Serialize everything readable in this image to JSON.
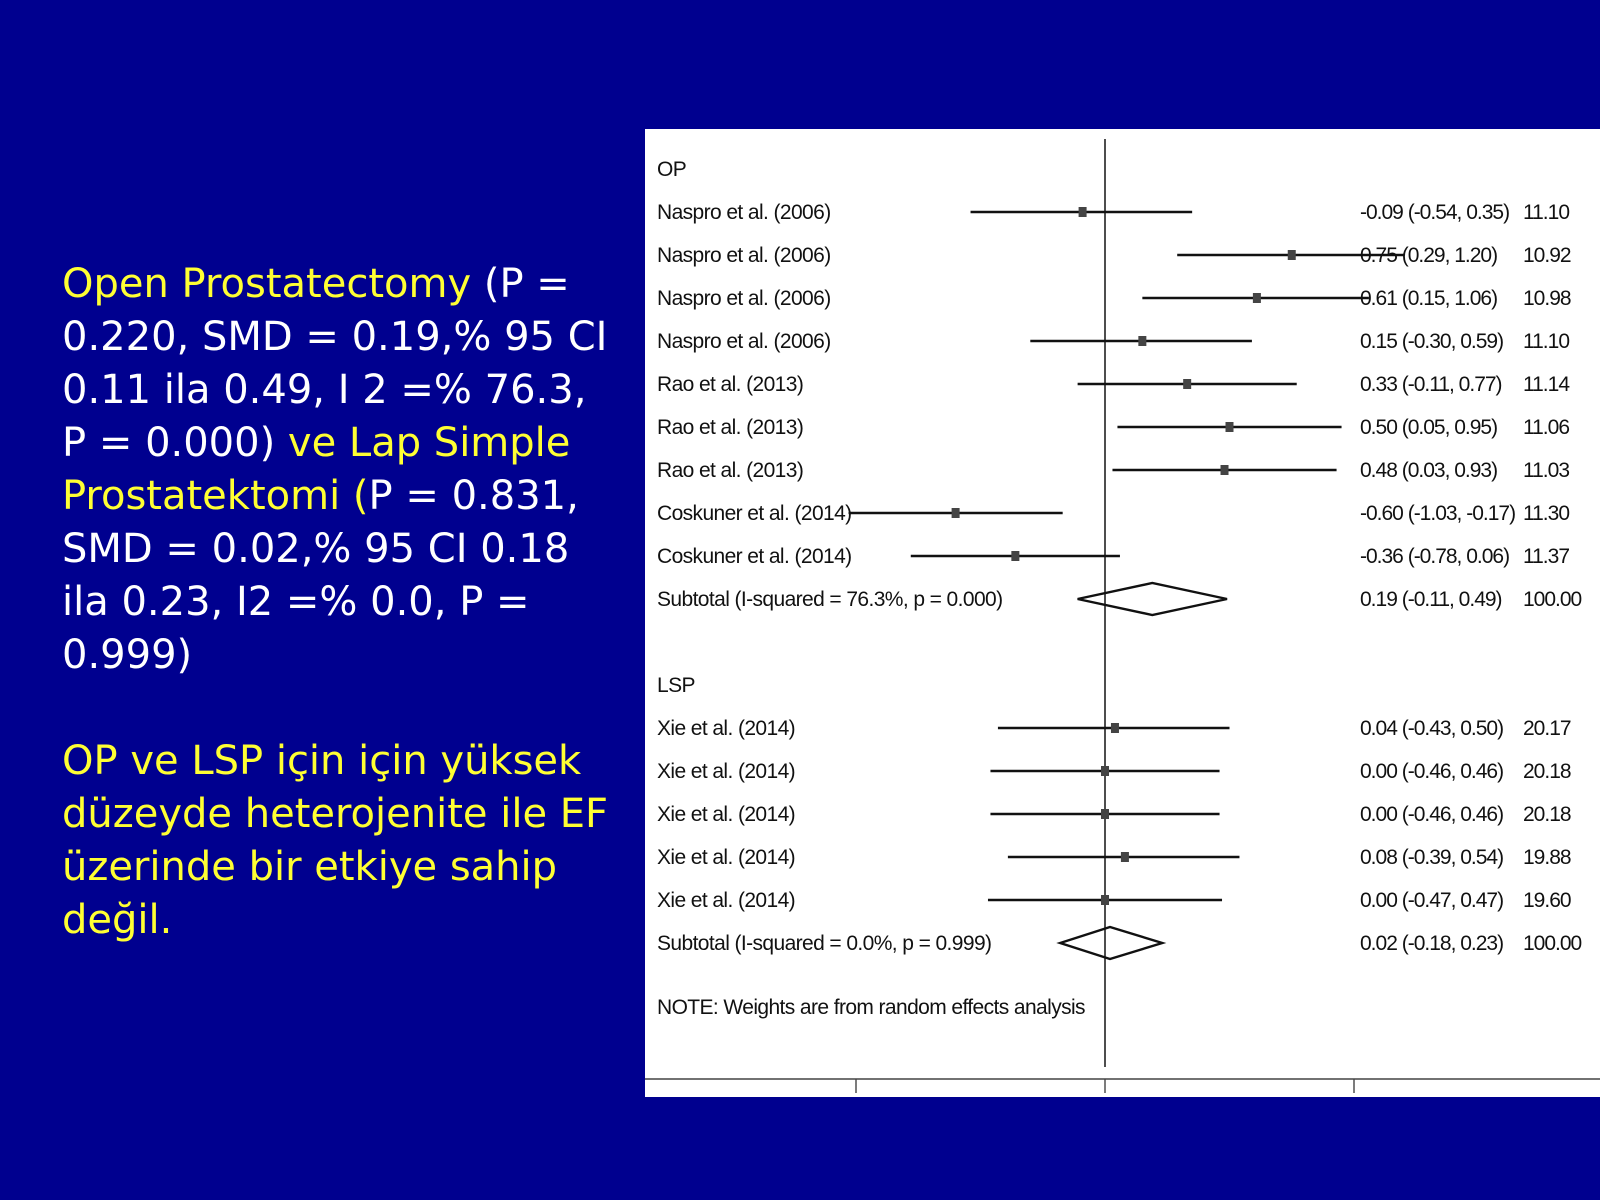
{
  "slide": {
    "paragraph1": [
      {
        "text": "Open Prostatectomy ",
        "color": "yellow"
      },
      {
        "text": "(P = 0.220, SMD = 0.19,% 95 CI 0.11 ila 0.49, I 2 =% 76.3, P = 0.000) ",
        "color": "white"
      },
      {
        "text": "ve Lap Simple Prostatektomi (",
        "color": "yellow"
      },
      {
        "text": "P = 0.831, SMD = 0.02,% 95 CI 0.18 ila 0.23, I2 =% 0.0, P = 0.999)",
        "color": "white"
      }
    ],
    "paragraph2": "OP ve LSP için için yüksek düzeyde heterojenite ile EF üzerinde bir etkiye sahip değil."
  },
  "chart_data": {
    "type": "forest",
    "xlim": [
      -1.5,
      1.5
    ],
    "groups": [
      {
        "label": "OP",
        "rows": [
          {
            "study": "Naspro et al. (2006)",
            "es": -0.09,
            "lo": -0.54,
            "hi": 0.35,
            "ci_text": "-0.09 (-0.54, 0.35)",
            "weight": "11.10"
          },
          {
            "study": "Naspro et al. (2006)",
            "es": 0.75,
            "lo": 0.29,
            "hi": 1.2,
            "ci_text": "0.75 (0.29, 1.20)",
            "weight": "10.92"
          },
          {
            "study": "Naspro et al. (2006)",
            "es": 0.61,
            "lo": 0.15,
            "hi": 1.06,
            "ci_text": "0.61 (0.15, 1.06)",
            "weight": "10.98"
          },
          {
            "study": "Naspro et al. (2006)",
            "es": 0.15,
            "lo": -0.3,
            "hi": 0.59,
            "ci_text": "0.15 (-0.30, 0.59)",
            "weight": "11.10"
          },
          {
            "study": "Rao et al. (2013)",
            "es": 0.33,
            "lo": -0.11,
            "hi": 0.77,
            "ci_text": "0.33 (-0.11, 0.77)",
            "weight": "11.14"
          },
          {
            "study": "Rao et al. (2013)",
            "es": 0.5,
            "lo": 0.05,
            "hi": 0.95,
            "ci_text": "0.50 (0.05, 0.95)",
            "weight": "11.06"
          },
          {
            "study": "Rao et al. (2013)",
            "es": 0.48,
            "lo": 0.03,
            "hi": 0.93,
            "ci_text": "0.48 (0.03, 0.93)",
            "weight": "11.03"
          },
          {
            "study": "Coskuner et al. (2014)",
            "es": -0.6,
            "lo": -1.03,
            "hi": -0.17,
            "ci_text": "-0.60 (-1.03, -0.17)",
            "weight": "11.30"
          },
          {
            "study": "Coskuner et al. (2014)",
            "es": -0.36,
            "lo": -0.78,
            "hi": 0.06,
            "ci_text": "-0.36 (-0.78, 0.06)",
            "weight": "11.37"
          }
        ],
        "subtotal": {
          "label": "Subtotal  (I-squared = 76.3%, p = 0.000)",
          "es": 0.19,
          "lo": -0.11,
          "hi": 0.49,
          "ci_text": "0.19 (-0.11, 0.49)",
          "weight": "100.00"
        }
      },
      {
        "label": "LSP",
        "rows": [
          {
            "study": "Xie et al. (2014)",
            "es": 0.04,
            "lo": -0.43,
            "hi": 0.5,
            "ci_text": "0.04 (-0.43, 0.50)",
            "weight": "20.17"
          },
          {
            "study": "Xie et al. (2014)",
            "es": 0.0,
            "lo": -0.46,
            "hi": 0.46,
            "ci_text": "0.00 (-0.46, 0.46)",
            "weight": "20.18"
          },
          {
            "study": "Xie et al. (2014)",
            "es": 0.0,
            "lo": -0.46,
            "hi": 0.46,
            "ci_text": "0.00 (-0.46, 0.46)",
            "weight": "20.18"
          },
          {
            "study": "Xie et al. (2014)",
            "es": 0.08,
            "lo": -0.39,
            "hi": 0.54,
            "ci_text": "0.08 (-0.39, 0.54)",
            "weight": "19.88"
          },
          {
            "study": "Xie et al. (2014)",
            "es": 0.0,
            "lo": -0.47,
            "hi": 0.47,
            "ci_text": "0.00 (-0.47, 0.47)",
            "weight": "19.60"
          }
        ],
        "subtotal": {
          "label": "Subtotal  (I-squared = 0.0%, p = 0.999)",
          "es": 0.02,
          "lo": -0.18,
          "hi": 0.23,
          "ci_text": "0.02 (-0.18, 0.23)",
          "weight": "100.00"
        }
      }
    ],
    "note": "NOTE: Weights are from random effects analysis",
    "x_ticks": [
      -1,
      0,
      1
    ],
    "reference_line": 0
  }
}
